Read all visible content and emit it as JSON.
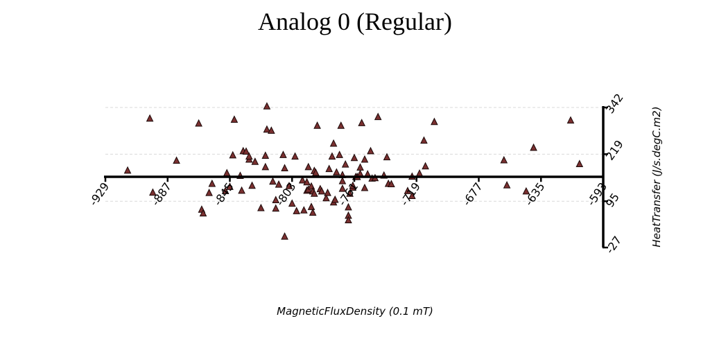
{
  "chart_data": {
    "type": "scatter",
    "title": "Analog 0 (Regular)",
    "xlabel": "MagneticFluxDensity (0.1 mT)",
    "ylabel": "HeatTransfer (J/s.degC.m2)",
    "xlim": [
      -929,
      -593
    ],
    "ylim": [
      -27,
      342
    ],
    "x_ticks": [
      "-929",
      "-887",
      "-845",
      "-803",
      "-761",
      "-719",
      "-677",
      "-635",
      "-593"
    ],
    "y_ticks": [
      "-27",
      "95",
      "219",
      "342"
    ],
    "x_tick_values": [
      -929,
      -887,
      -845,
      -803,
      -761,
      -719,
      -677,
      -635,
      -593
    ],
    "y_tick_values": [
      -27,
      95,
      219,
      "342"
    ],
    "x_axis_crosses_y": 157,
    "grid": "horizontal-dashed",
    "marker": "triangle",
    "marker_color": "#7a3030",
    "series": [
      {
        "points": [
          [
            -914,
            177
          ],
          [
            -899,
            314
          ],
          [
            -897,
            119
          ],
          [
            -881,
            203
          ],
          [
            -866,
            301
          ],
          [
            -864,
            74
          ],
          [
            -863,
            64
          ],
          [
            -859,
            118
          ],
          [
            -857,
            142
          ],
          [
            -848,
            123
          ],
          [
            -847,
            170
          ],
          [
            -845,
            134
          ],
          [
            -843,
            217
          ],
          [
            -842,
            311
          ],
          [
            -838,
            163
          ],
          [
            -837,
            124
          ],
          [
            -836,
            228
          ],
          [
            -834,
            227
          ],
          [
            -832,
            206
          ],
          [
            -832,
            214
          ],
          [
            -830,
            137
          ],
          [
            -828,
            200
          ],
          [
            -824,
            78
          ],
          [
            -821,
            186
          ],
          [
            -821,
            216
          ],
          [
            -820,
            346
          ],
          [
            -820,
            285
          ],
          [
            -817,
            282
          ],
          [
            -816,
            148
          ],
          [
            -814,
            99
          ],
          [
            -814,
            77
          ],
          [
            -812,
            140
          ],
          [
            -809,
            218
          ],
          [
            -808,
            3
          ],
          [
            -808,
            183
          ],
          [
            -805,
            136
          ],
          [
            -803,
            90
          ],
          [
            -801,
            214
          ],
          [
            -800,
            70
          ],
          [
            -796,
            151
          ],
          [
            -795,
            72
          ],
          [
            -793,
            146
          ],
          [
            -793,
            124
          ],
          [
            -792,
            127
          ],
          [
            -792,
            186
          ],
          [
            -790,
            81
          ],
          [
            -790,
            135
          ],
          [
            -789,
            122
          ],
          [
            -789,
            66
          ],
          [
            -788,
            116
          ],
          [
            -788,
            176
          ],
          [
            -787,
            171
          ],
          [
            -786,
            295
          ],
          [
            -784,
            128
          ],
          [
            -783,
            122
          ],
          [
            -780,
            104
          ],
          [
            -779,
            118
          ],
          [
            -778,
            181
          ],
          [
            -776,
            214
          ],
          [
            -775,
            248
          ],
          [
            -775,
            93
          ],
          [
            -774,
            100
          ],
          [
            -773,
            172
          ],
          [
            -771,
            218
          ],
          [
            -770,
            295
          ],
          [
            -769,
            165
          ],
          [
            -769,
            149
          ],
          [
            -769,
            129
          ],
          [
            -767,
            193
          ],
          [
            -765,
            58
          ],
          [
            -765,
            80
          ],
          [
            -765,
            46
          ],
          [
            -764,
            116
          ],
          [
            -762,
            132
          ],
          [
            -762,
            137
          ],
          [
            -761,
            210
          ],
          [
            -760,
            160
          ],
          [
            -759,
            160
          ],
          [
            -757,
            185
          ],
          [
            -757,
            168
          ],
          [
            -756,
            302
          ],
          [
            -754,
            131
          ],
          [
            -754,
            206
          ],
          [
            -752,
            167
          ],
          [
            -750,
            228
          ],
          [
            -749,
            156
          ],
          [
            -747,
            157
          ],
          [
            -745,
            318
          ],
          [
            -741,
            164
          ],
          [
            -739,
            212
          ],
          [
            -738,
            142
          ],
          [
            -736,
            141
          ],
          [
            -725,
            123
          ],
          [
            -722,
            110
          ],
          [
            -722,
            161
          ],
          [
            -717,
            169
          ],
          [
            -714,
            256
          ],
          [
            -713,
            188
          ],
          [
            -707,
            305
          ],
          [
            -660,
            204
          ],
          [
            -658,
            138
          ],
          [
            -645,
            122
          ],
          [
            -640,
            237
          ],
          [
            -615,
            309
          ],
          [
            -609,
            194
          ]
        ]
      }
    ]
  }
}
